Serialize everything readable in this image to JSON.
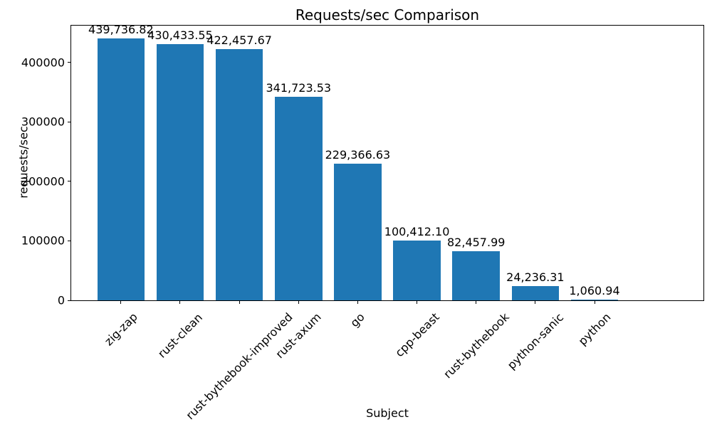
{
  "chart_data": {
    "type": "bar",
    "title": "Requests/sec Comparison",
    "xlabel": "Subject",
    "ylabel": "requests/sec",
    "categories": [
      "zig-zap",
      "rust-clean",
      "rust-bythebook-improved",
      "rust-axum",
      "go",
      "cpp-beast",
      "rust-bythebook",
      "python-sanic",
      "python"
    ],
    "values": [
      439736.82,
      430433.55,
      422457.67,
      341723.53,
      229366.63,
      100412.1,
      82457.99,
      24236.31,
      1060.94
    ],
    "value_labels": [
      "439,736.82",
      "430,433.55",
      "422,457.67",
      "341,723.53",
      "229,366.63",
      "100,412.10",
      "82,457.99",
      "24,236.31",
      "1,060.94"
    ],
    "yticks": [
      0,
      100000,
      200000,
      300000,
      400000
    ],
    "ytick_labels": [
      "0",
      "100000",
      "200000",
      "300000",
      "400000"
    ],
    "ylim": [
      0,
      461724
    ],
    "bar_color": "#1f77b4",
    "grid": false,
    "legend": "none"
  }
}
